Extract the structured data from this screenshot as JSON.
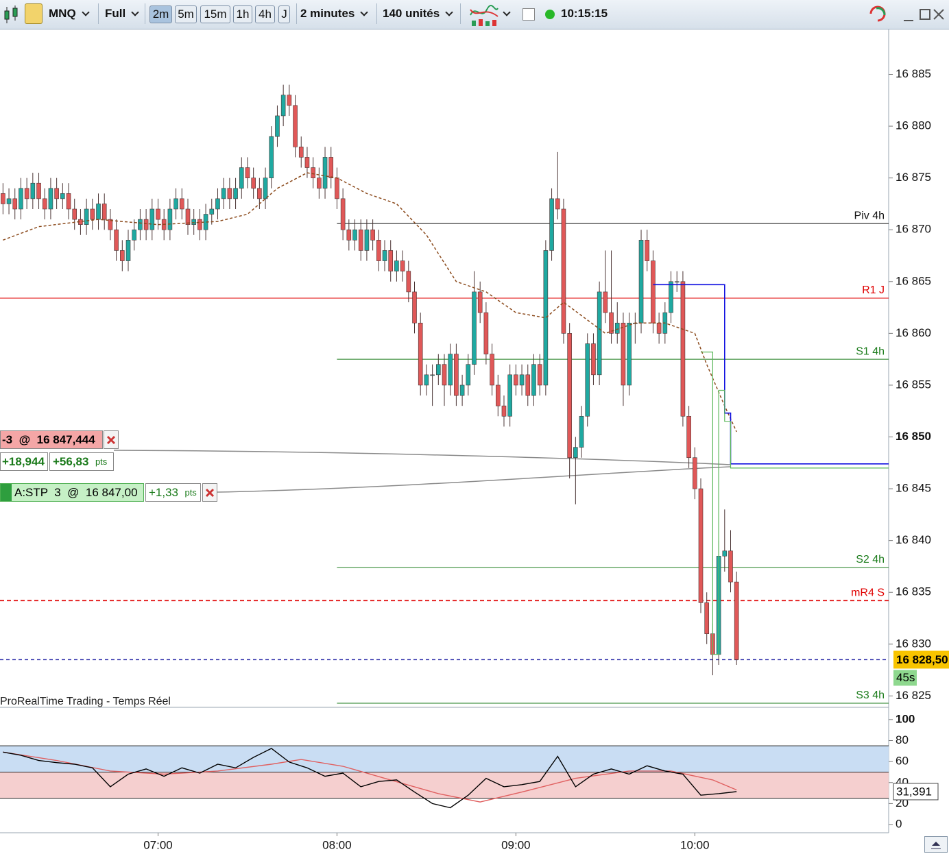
{
  "toolbar": {
    "symbol": "MNQ",
    "mode": "Full",
    "timeframes": [
      "2m",
      "5m",
      "15m",
      "1h",
      "4h",
      "J"
    ],
    "interval": "2 minutes",
    "units": "140 unités",
    "clock": "10:15:15"
  },
  "chart_data": [
    {
      "type": "candlestick",
      "x": [
        "06:08",
        "06:10",
        "06:12",
        "06:14",
        "06:16",
        "06:18",
        "06:20",
        "06:22",
        "06:24",
        "06:26",
        "06:28",
        "06:30",
        "06:32",
        "06:34",
        "06:36",
        "06:38",
        "06:40",
        "06:42",
        "06:44",
        "06:46",
        "06:48",
        "06:50",
        "06:52",
        "06:54",
        "06:56",
        "06:58",
        "07:00",
        "07:02",
        "07:04",
        "07:06",
        "07:08",
        "07:10",
        "07:12",
        "07:14",
        "07:16",
        "07:18",
        "07:20",
        "07:22",
        "07:24",
        "07:26",
        "07:28",
        "07:30",
        "07:32",
        "07:34",
        "07:36",
        "07:38",
        "07:40",
        "07:42",
        "07:44",
        "07:46",
        "07:48",
        "07:50",
        "07:52",
        "07:54",
        "07:56",
        "07:58",
        "08:00",
        "08:02",
        "08:04",
        "08:06",
        "08:08",
        "08:10",
        "08:12",
        "08:14",
        "08:16",
        "08:18",
        "08:20",
        "08:22",
        "08:24",
        "08:26",
        "08:28",
        "08:30",
        "08:32",
        "08:34",
        "08:36",
        "08:38",
        "08:40",
        "08:42",
        "08:44",
        "08:46",
        "08:48",
        "08:50",
        "08:52",
        "08:54",
        "08:56",
        "08:58",
        "09:00",
        "09:02",
        "09:04",
        "09:06",
        "09:08",
        "09:10",
        "09:12",
        "09:14",
        "09:16",
        "09:18",
        "09:20",
        "09:22",
        "09:24",
        "09:26",
        "09:28",
        "09:30",
        "09:32",
        "09:34",
        "09:36",
        "09:38",
        "09:40",
        "09:42",
        "09:44",
        "09:46",
        "09:48",
        "09:50",
        "09:52",
        "09:54",
        "09:56",
        "09:58",
        "10:00",
        "10:02",
        "10:04",
        "10:06",
        "10:08",
        "10:10",
        "10:12",
        "10:14"
      ],
      "open": [
        16873.5,
        16872.5,
        16873,
        16872,
        16874,
        16873,
        16874.5,
        16873,
        16872,
        16874,
        16873,
        16873.5,
        16872,
        16871,
        16870.5,
        16872,
        16871,
        16872.5,
        16871,
        16870,
        16868,
        16867,
        16869,
        16870,
        16871,
        16870,
        16872,
        16871,
        16870,
        16872,
        16873,
        16872,
        16870.5,
        16871,
        16870,
        16871.5,
        16872,
        16873,
        16874,
        16873,
        16874,
        16876,
        16875,
        16874,
        16873,
        16875,
        16879,
        16881,
        16883,
        16882,
        16878,
        16877,
        16876,
        16875,
        16874,
        16877,
        16875,
        16873,
        16870,
        16869,
        16870,
        16868,
        16870,
        16869,
        16867,
        16868,
        16866,
        16867,
        16866,
        16864,
        16861,
        16855,
        16856,
        16856,
        16857,
        16855,
        16858,
        16854,
        16855,
        16857,
        16864,
        16862,
        16858,
        16855,
        16853,
        16852,
        16856,
        16855,
        16856,
        16854,
        16857,
        16855,
        16868,
        16873,
        16872,
        16860,
        16848,
        16849,
        16852,
        16859,
        16856,
        16864,
        16862,
        16860,
        16861,
        16855,
        16861,
        16861,
        16869,
        16867,
        16861,
        16860,
        16862,
        16865,
        16865,
        16852,
        16848,
        16845,
        16834,
        16831,
        16829,
        16838.5,
        16839,
        16836
      ],
      "high": [
        16874.5,
        16874,
        16874,
        16875,
        16875,
        16875.5,
        16875.5,
        16874,
        16875,
        16875,
        16874.5,
        16874.5,
        16873,
        16872,
        16873,
        16873,
        16873.5,
        16873.5,
        16872,
        16871,
        16869,
        16870,
        16871,
        16872,
        16872,
        16873,
        16873,
        16872,
        16873,
        16874,
        16874,
        16873,
        16872,
        16872,
        16872.5,
        16873,
        16874,
        16875,
        16875,
        16875,
        16877,
        16877,
        16876,
        16875,
        16876,
        16880,
        16882,
        16884,
        16884,
        16883,
        16879,
        16878,
        16877,
        16876,
        16878,
        16878,
        16876,
        16874,
        16871,
        16871,
        16871,
        16871,
        16871,
        16870,
        16869,
        16869,
        16868,
        16868,
        16867,
        16865,
        16862,
        16857,
        16857,
        16858,
        16858,
        16859,
        16859,
        16856,
        16858,
        16866,
        16865,
        16863,
        16859,
        16856,
        16854,
        16857,
        16857,
        16857,
        16857,
        16858,
        16858,
        16869,
        16874,
        16877.5,
        16873,
        16861,
        16850,
        16853,
        16860,
        16860,
        16865,
        16868,
        16868,
        16863,
        16862,
        16862,
        16862,
        16870,
        16870,
        16868,
        16862,
        16863,
        16866,
        16866,
        16866,
        16853,
        16849,
        16846,
        16835,
        16832,
        16840,
        16843,
        16841,
        16837
      ],
      "low": [
        16871.5,
        16871.5,
        16871,
        16871,
        16872,
        16872,
        16872,
        16871,
        16871,
        16872,
        16872,
        16871,
        16870,
        16869.5,
        16869.5,
        16870,
        16870,
        16870,
        16869,
        16867,
        16866,
        16866,
        16868,
        16869,
        16869,
        16869,
        16870,
        16869,
        16869,
        16871,
        16871,
        16869.5,
        16869.5,
        16869,
        16869,
        16870.5,
        16871,
        16872,
        16872,
        16872,
        16873,
        16874,
        16873,
        16872,
        16872,
        16874,
        16878,
        16880,
        16881,
        16877,
        16876,
        16875,
        16874,
        16873,
        16873,
        16874,
        16872,
        16869,
        16868,
        16868,
        16867,
        16867,
        16868,
        16866,
        16866,
        16865,
        16865,
        16865,
        16863,
        16860,
        16854,
        16854,
        16853,
        16855,
        16853,
        16854,
        16853,
        16853,
        16854,
        16856,
        16861,
        16857,
        16854,
        16852,
        16851,
        16851,
        16854,
        16854,
        16853,
        16853,
        16854,
        16854,
        16867,
        16871,
        16859,
        16846,
        16843.5,
        16848,
        16851,
        16855,
        16855,
        16861,
        16859,
        16859,
        16853,
        16854,
        16859,
        16860,
        16866,
        16860,
        16859,
        16859,
        16861,
        16864,
        16851,
        16847,
        16844,
        16833,
        16830,
        16827,
        16828,
        16837,
        16835,
        16828
      ],
      "close": [
        16872.5,
        16873,
        16872,
        16874,
        16873,
        16874.5,
        16873,
        16872,
        16874,
        16873,
        16873.5,
        16872,
        16871,
        16870.5,
        16872,
        16871,
        16872.5,
        16871,
        16870,
        16868,
        16867,
        16869,
        16870,
        16871,
        16870,
        16872,
        16871,
        16870,
        16872,
        16873,
        16872,
        16870.5,
        16871,
        16870,
        16871.5,
        16872,
        16873,
        16874,
        16873,
        16874,
        16876,
        16875,
        16874,
        16873,
        16875,
        16879,
        16881,
        16883,
        16882,
        16878,
        16877,
        16876,
        16875,
        16874,
        16877,
        16875,
        16873,
        16870,
        16869,
        16870,
        16868,
        16870,
        16869,
        16867,
        16868,
        16866,
        16867,
        16866,
        16864,
        16861,
        16855,
        16856,
        16856,
        16857,
        16855,
        16858,
        16854,
        16855,
        16857,
        16864,
        16862,
        16858,
        16855,
        16853,
        16852,
        16856,
        16855,
        16856,
        16854,
        16857,
        16855,
        16868,
        16873,
        16872,
        16860,
        16848,
        16849,
        16852,
        16859,
        16856,
        16864,
        16862,
        16860,
        16861,
        16855,
        16861,
        16861,
        16869,
        16867,
        16861,
        16860,
        16862,
        16865,
        16865,
        16852,
        16848,
        16845,
        16834,
        16831,
        16829,
        16838.5,
        16839,
        16836,
        16828.5
      ],
      "up_color": "#1fa9a1",
      "down_color": "#e05858",
      "wick_color": "#4a3434",
      "xlim": [
        "06:07",
        "11:05"
      ],
      "ylim": [
        16823.9,
        16889.4
      ],
      "xticks": [
        "07:00",
        "08:00",
        "09:00",
        "10:00"
      ],
      "yticks": [
        {
          "value": 16825,
          "label": "16 825"
        },
        {
          "value": 16830,
          "label": "16 830"
        },
        {
          "value": 16835,
          "label": "16 835"
        },
        {
          "value": 16840,
          "label": "16 840"
        },
        {
          "value": 16845,
          "label": "16 845"
        },
        {
          "value": 16850,
          "label": "16 850",
          "bold": true
        },
        {
          "value": 16855,
          "label": "16 855"
        },
        {
          "value": 16860,
          "label": "16 860"
        },
        {
          "value": 16865,
          "label": "16 865"
        },
        {
          "value": 16870,
          "label": "16 870"
        },
        {
          "value": 16875,
          "label": "16 875"
        },
        {
          "value": 16880,
          "label": "16 880"
        },
        {
          "value": 16885,
          "label": "16 885"
        }
      ],
      "moving_average": {
        "color": "#8b4a1c",
        "x": [
          "06:08",
          "06:20",
          "06:40",
          "07:00",
          "07:20",
          "07:30",
          "07:40",
          "07:50",
          "08:00",
          "08:10",
          "08:20",
          "08:30",
          "08:40",
          "08:50",
          "09:00",
          "09:10",
          "09:16",
          "09:30",
          "09:40",
          "09:50",
          "10:00",
          "10:04",
          "10:10",
          "10:14"
        ],
        "values": [
          16869,
          16870.3,
          16871,
          16870.5,
          16870.8,
          16871.5,
          16874,
          16875.5,
          16875,
          16873.5,
          16872.5,
          16869.5,
          16865,
          16864,
          16862,
          16861.5,
          16863,
          16860,
          16861,
          16861,
          16860,
          16857,
          16853,
          16850.5
        ]
      },
      "levels": [
        {
          "name": "Piv 4h",
          "value": 16870.6,
          "color": "#111111",
          "start": "08:00"
        },
        {
          "name": "R1 J",
          "value": 16863.4,
          "color": "#e00000"
        },
        {
          "name": "S1 4h",
          "value": 16857.5,
          "color": "#1d7d1d",
          "start": "08:00"
        },
        {
          "name": "S2 4h",
          "value": 16837.4,
          "color": "#1d7d1d",
          "start": "08:00"
        },
        {
          "name": "mR4 S",
          "value": 16834.2,
          "color": "#e00000",
          "dashed": true
        },
        {
          "name": "S3 4h",
          "value": 16824.3,
          "color": "#1d7d1d",
          "start": "08:00"
        }
      ],
      "stop_lines": [
        {
          "color": "#1010e0",
          "x": [
            "09:46",
            "10:10",
            "10:10",
            "10:12",
            "10:12",
            "11:05"
          ],
          "values": [
            16864.7,
            16864.7,
            16852.3,
            16852.3,
            16847.4,
            16847.4
          ]
        },
        {
          "color": "#5cb85c",
          "x": [
            "10:02",
            "10:06",
            "10:06",
            "10:08",
            "10:08",
            "10:10",
            "10:10",
            "10:12",
            "10:12",
            "11:05"
          ],
          "values": [
            16858.2,
            16858.2,
            16829,
            16829,
            16854.5,
            16854.5,
            16851.5,
            16851.5,
            16847,
            16847
          ]
        }
      ],
      "last_price": {
        "value": 16828.5,
        "label": "16 828,50",
        "countdown": "45s",
        "color": "#2a2aa8"
      },
      "footer": "ProRealTime Trading - Temps Réel",
      "order_tags": [
        {
          "qty": "-3",
          "at": "@",
          "price": "16 847,444"
        },
        {
          "gain": "+18,944",
          "points": "+56,83",
          "unit": "pts"
        },
        {
          "label": "A:STP  3",
          "at": "@",
          "price": "16 847,00",
          "points": "+1,33",
          "unit": "pts"
        }
      ]
    },
    {
      "type": "line",
      "x": [
        "06:08",
        "06:14",
        "06:20",
        "06:26",
        "06:32",
        "06:38",
        "06:44",
        "06:50",
        "06:56",
        "07:02",
        "07:08",
        "07:14",
        "07:20",
        "07:26",
        "07:32",
        "07:38",
        "07:44",
        "07:50",
        "07:56",
        "08:02",
        "08:08",
        "08:14",
        "08:20",
        "08:26",
        "08:32",
        "08:38",
        "08:44",
        "08:50",
        "08:56",
        "09:02",
        "09:08",
        "09:14",
        "09:20",
        "09:26",
        "09:32",
        "09:38",
        "09:44",
        "09:50",
        "09:56",
        "10:02",
        "10:08",
        "10:14"
      ],
      "values": [
        69,
        66,
        61,
        59,
        57.5,
        54,
        36,
        48,
        53,
        46,
        54,
        49,
        57.5,
        54,
        64,
        72.5,
        59.5,
        54,
        46,
        49,
        36,
        41,
        42.5,
        31,
        20,
        16,
        28,
        44,
        36,
        38,
        41,
        65,
        36,
        48,
        53,
        48,
        56,
        51,
        48,
        28,
        29.5,
        31.391
      ],
      "color": "#000000",
      "signal": {
        "color": "#e06060",
        "x": [
          "06:08",
          "06:26",
          "06:44",
          "07:02",
          "07:20",
          "07:38",
          "07:48",
          "08:02",
          "08:16",
          "08:34",
          "08:48",
          "09:02",
          "09:20",
          "09:38",
          "09:52",
          "10:06",
          "10:14"
        ],
        "values": [
          69,
          61,
          51,
          48,
          51,
          57.5,
          62,
          55.5,
          44,
          29.5,
          21.5,
          31,
          44,
          51,
          51,
          42.5,
          33
        ]
      },
      "zones": [
        {
          "from": 50,
          "to": 75,
          "color": "#c9ddf3"
        },
        {
          "from": 25,
          "to": 50,
          "color": "#f5cfcf"
        }
      ],
      "xlim": [
        "06:07",
        "11:05"
      ],
      "ylim": [
        -7.8,
        111
      ],
      "yticks": [
        0,
        20,
        40,
        60,
        80,
        100
      ],
      "last_value": {
        "value": 31.391,
        "label": "31,391"
      }
    }
  ]
}
